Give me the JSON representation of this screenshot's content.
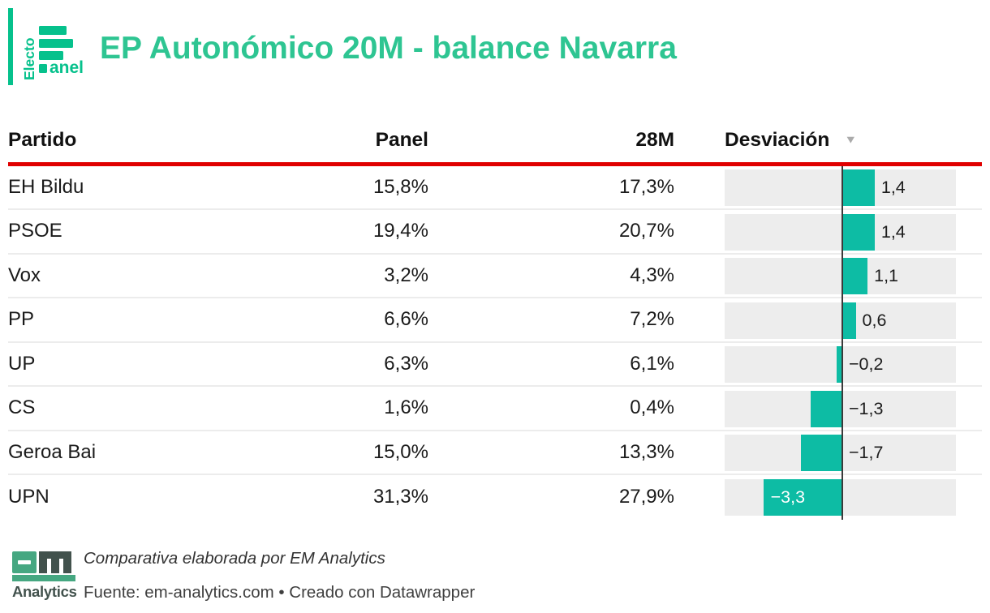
{
  "brand": {
    "electo": "Electo",
    "anel": "anel"
  },
  "header": {
    "title": "EP Autonómico 20M - balance Navarra"
  },
  "table": {
    "columns": [
      "Partido",
      "Panel",
      "28M",
      "Desviación"
    ],
    "sort_icon": "▼",
    "rows": [
      {
        "party": "EH Bildu",
        "panel": "15,8%",
        "m28": "17,3%",
        "dev": 1.4,
        "dev_label": "1,4"
      },
      {
        "party": "PSOE",
        "panel": "19,4%",
        "m28": "20,7%",
        "dev": 1.4,
        "dev_label": "1,4"
      },
      {
        "party": "Vox",
        "panel": "3,2%",
        "m28": "4,3%",
        "dev": 1.1,
        "dev_label": "1,1"
      },
      {
        "party": "PP",
        "panel": "6,6%",
        "m28": "7,2%",
        "dev": 0.6,
        "dev_label": "0,6"
      },
      {
        "party": "UP",
        "panel": "6,3%",
        "m28": "6,1%",
        "dev": -0.2,
        "dev_label": "−0,2"
      },
      {
        "party": "CS",
        "panel": "1,6%",
        "m28": "0,4%",
        "dev": -1.3,
        "dev_label": "−1,3"
      },
      {
        "party": "Geroa Bai",
        "panel": "15,0%",
        "m28": "13,3%",
        "dev": -1.7,
        "dev_label": "−1,7"
      },
      {
        "party": "UPN",
        "panel": "31,3%",
        "m28": "27,9%",
        "dev": -3.3,
        "dev_label": "−3,3"
      }
    ]
  },
  "chart_data": {
    "type": "table",
    "title": "EP Autonómico 20M - balance Navarra",
    "columns": [
      "Partido",
      "Panel",
      "28M",
      "Desviación"
    ],
    "bar_column": "Desviación",
    "bar_style": "diverging horizontal bar around zero axis",
    "sorted_by": "Desviación descending",
    "categories": [
      "EH Bildu",
      "PSOE",
      "Vox",
      "PP",
      "UP",
      "CS",
      "Geroa Bai",
      "UPN"
    ],
    "series": [
      {
        "name": "Panel",
        "values": [
          15.8,
          19.4,
          3.2,
          6.6,
          6.3,
          1.6,
          15.0,
          31.3
        ]
      },
      {
        "name": "28M",
        "values": [
          17.3,
          20.7,
          4.3,
          7.2,
          6.1,
          0.4,
          13.3,
          27.9
        ]
      },
      {
        "name": "Desviación",
        "values": [
          1.4,
          1.4,
          1.1,
          0.6,
          -0.2,
          -1.3,
          -1.7,
          -3.3
        ]
      }
    ],
    "xlim": [
      -4.9,
      4.8
    ],
    "grid": false,
    "legend": false
  },
  "footer": {
    "logo_name": "Analytics",
    "line1": "Comparativa elaborada por EM Analytics",
    "line2": "Fuente: em-analytics.com • Creado con Datawrapper"
  },
  "colors": {
    "logo_green": "#06C18C",
    "title_green": "#2EC592",
    "bar_teal": "#0DBCA4",
    "rule_red": "#E00000",
    "cell_bg": "#EDEDED",
    "footer_green": "#45A781",
    "footer_dark": "#42524D"
  }
}
